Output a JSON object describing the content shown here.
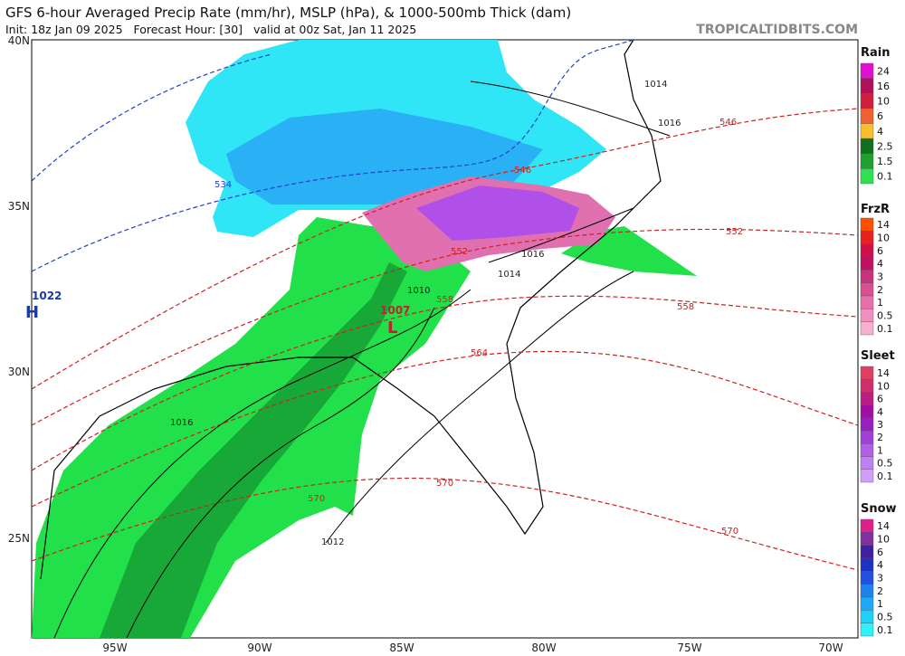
{
  "header": {
    "title": "GFS 6-hour Averaged Precip Rate (mm/hr), MSLP (hPa), & 1000-500mb Thick (dam)",
    "subtitle": "Init: 18z Jan 09 2025   Forecast Hour: [30]   valid at 00z Sat, Jan 11 2025",
    "brand": "TROPICALTIDBITS.COM"
  },
  "map": {
    "lat_labels": [
      "40N",
      "35N",
      "30N",
      "25N"
    ],
    "lon_labels": [
      "95W",
      "90W",
      "85W",
      "80W",
      "75W",
      "70W"
    ],
    "pressure_labels": [
      "1022",
      "H",
      "1007",
      "L",
      "1014",
      "1016",
      "1016",
      "1014",
      "1010",
      "1016",
      "1012"
    ],
    "thickness_labels": [
      "534",
      "546",
      "546",
      "552",
      "552",
      "558",
      "558",
      "564",
      "570",
      "570",
      "570"
    ]
  },
  "legends": [
    {
      "title": "Rain",
      "items": [
        {
          "label": "24",
          "color": "#e010d0"
        },
        {
          "label": "16",
          "color": "#b0105a"
        },
        {
          "label": "10",
          "color": "#d0203a"
        },
        {
          "label": "6",
          "color": "#f06030"
        },
        {
          "label": "4",
          "color": "#f8c030"
        },
        {
          "label": "2.5",
          "color": "#107020"
        },
        {
          "label": "1.5",
          "color": "#20a030"
        },
        {
          "label": "0.1",
          "color": "#30e050"
        }
      ]
    },
    {
      "title": "FrzR",
      "items": [
        {
          "label": "14",
          "color": "#ff5000"
        },
        {
          "label": "10",
          "color": "#e82020"
        },
        {
          "label": "6",
          "color": "#d0104a"
        },
        {
          "label": "4",
          "color": "#c01060"
        },
        {
          "label": "3",
          "color": "#c83080"
        },
        {
          "label": "2",
          "color": "#d85090"
        },
        {
          "label": "1",
          "color": "#e870a8"
        },
        {
          "label": "0.5",
          "color": "#f090c0"
        },
        {
          "label": "0.1",
          "color": "#f8b0d0"
        }
      ]
    },
    {
      "title": "Sleet",
      "items": [
        {
          "label": "14",
          "color": "#e04060"
        },
        {
          "label": "10",
          "color": "#d0306a"
        },
        {
          "label": "6",
          "color": "#b82080"
        },
        {
          "label": "4",
          "color": "#a010a0"
        },
        {
          "label": "3",
          "color": "#9820c0"
        },
        {
          "label": "2",
          "color": "#a040d8"
        },
        {
          "label": "1",
          "color": "#b060e8"
        },
        {
          "label": "0.5",
          "color": "#c080f0"
        },
        {
          "label": "0.1",
          "color": "#d0a0f8"
        }
      ]
    },
    {
      "title": "Snow",
      "items": [
        {
          "label": "14",
          "color": "#e0208a"
        },
        {
          "label": "10",
          "color": "#8030a0"
        },
        {
          "label": "6",
          "color": "#4020a0"
        },
        {
          "label": "4",
          "color": "#2030c0"
        },
        {
          "label": "3",
          "color": "#2050e0"
        },
        {
          "label": "2",
          "color": "#2080f0"
        },
        {
          "label": "1",
          "color": "#20a8f8"
        },
        {
          "label": "0.5",
          "color": "#20d0f8"
        },
        {
          "label": "0.1",
          "color": "#30f0f8"
        }
      ]
    }
  ]
}
